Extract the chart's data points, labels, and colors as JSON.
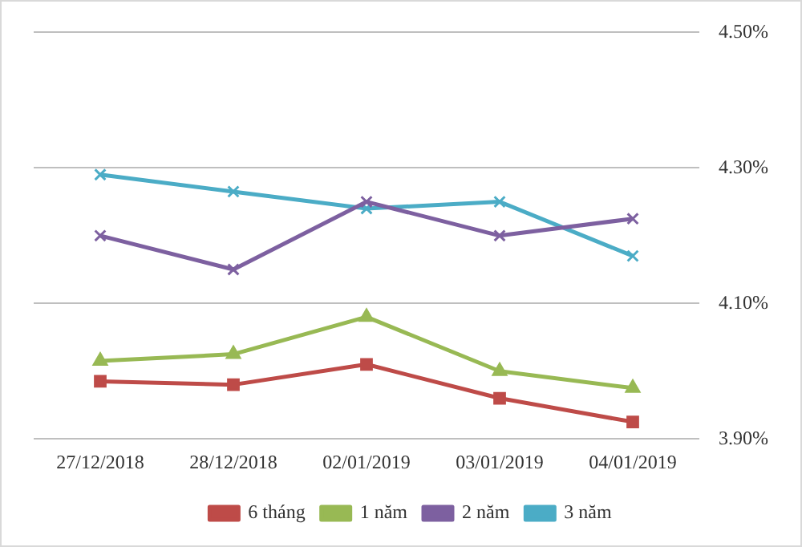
{
  "chart_data": {
    "type": "line",
    "categories": [
      "27/12/2018",
      "28/12/2018",
      "02/01/2019",
      "03/01/2019",
      "04/01/2019"
    ],
    "series": [
      {
        "name": "6 tháng",
        "color": "#be4b48",
        "marker": "square",
        "values": [
          3.985,
          3.98,
          4.01,
          3.96,
          3.925
        ]
      },
      {
        "name": "1 năm",
        "color": "#98b954",
        "marker": "triangle",
        "values": [
          4.015,
          4.025,
          4.08,
          4.0,
          3.975
        ]
      },
      {
        "name": "2 năm",
        "color": "#7d60a0",
        "marker": "cross",
        "values": [
          4.2,
          4.15,
          4.25,
          4.2,
          4.225
        ]
      },
      {
        "name": "3 năm",
        "color": "#4bacc6",
        "marker": "cross",
        "values": [
          4.29,
          4.265,
          4.24,
          4.25,
          4.17
        ]
      }
    ],
    "ylim": [
      3.9,
      4.5
    ],
    "yticks": [
      {
        "value": 3.9,
        "label": "3.90%"
      },
      {
        "value": 4.1,
        "label": "4.10%"
      },
      {
        "value": 4.3,
        "label": "4.30%"
      },
      {
        "value": 4.5,
        "label": "4.50%"
      }
    ],
    "grid": "y",
    "legend": "bottom"
  }
}
